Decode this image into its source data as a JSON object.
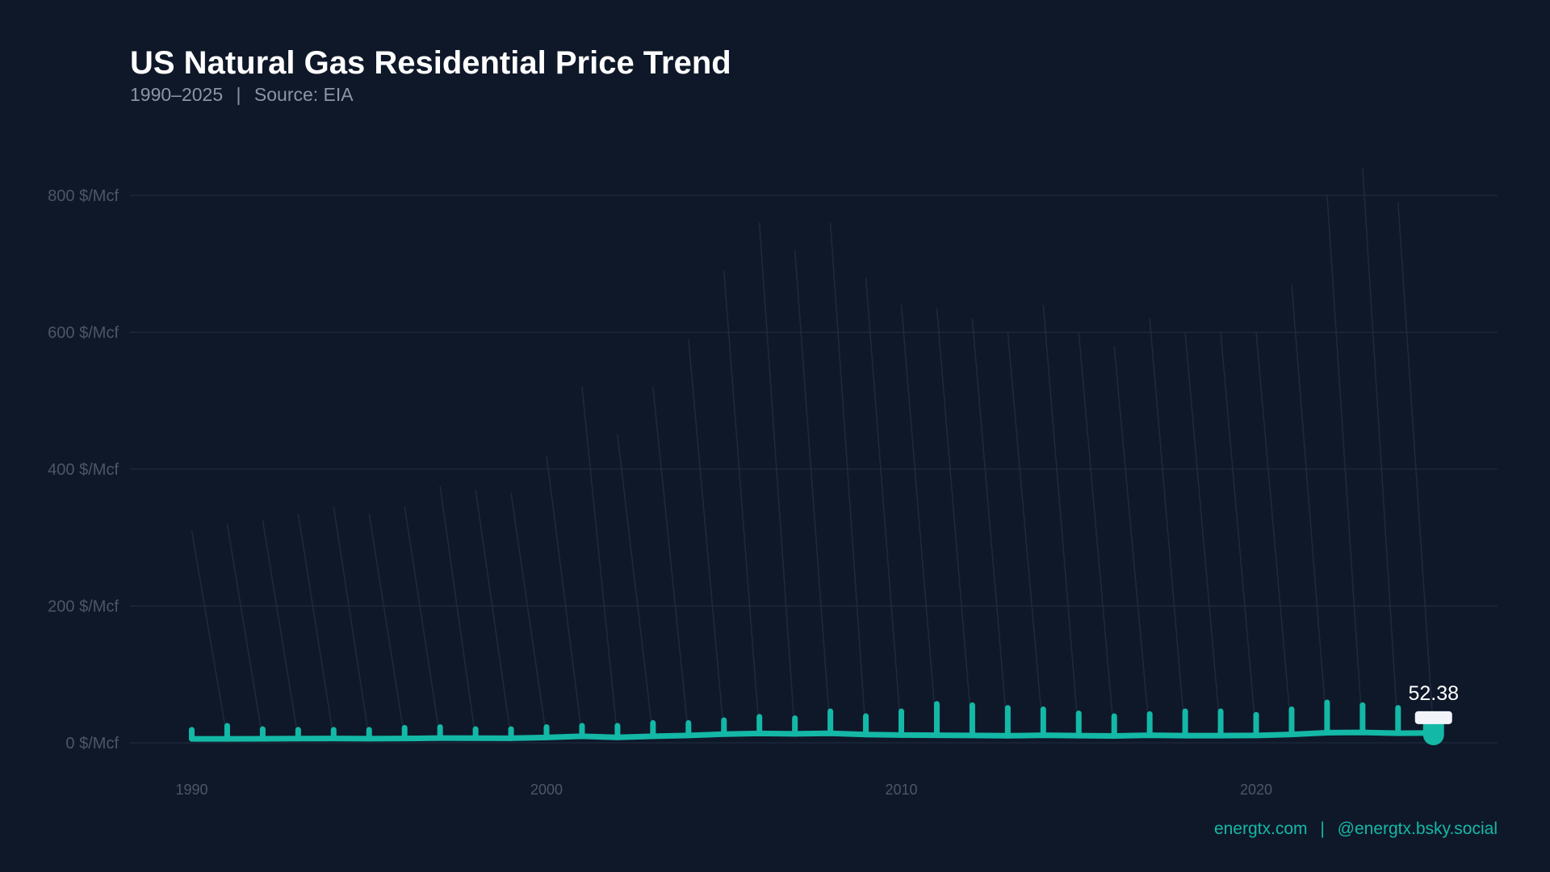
{
  "title": "US Natural Gas Residential Price Trend",
  "subtitle": {
    "range": "1990–2025",
    "separator": "|",
    "source": "Source: EIA"
  },
  "footer": {
    "site": "energtx.com",
    "separator": "|",
    "social": "@energtx.bsky.social"
  },
  "colors": {
    "background": "#0f1829",
    "line": "#14b8a6",
    "grid": "#1e2a3d",
    "tick_text": "#4b5668",
    "label": "#ffffff"
  },
  "chart_data": {
    "type": "line",
    "title": "US Natural Gas Residential Price Trend",
    "xlabel": "",
    "ylabel": "",
    "unit": "$/Mcf",
    "ylim": [
      0,
      800
    ],
    "xlim": [
      1988,
      2027
    ],
    "grid": true,
    "y_ticks": [
      "0 $/Mcf",
      "200 $/Mcf",
      "400 $/Mcf",
      "600 $/Mcf",
      "800 $/Mcf"
    ],
    "y_tick_values": [
      0,
      200,
      400,
      600,
      800
    ],
    "x_ticks": [
      "1990",
      "2000",
      "2010",
      "2020"
    ],
    "x_tick_values": [
      1990,
      2000,
      2010,
      2020
    ],
    "x": [
      1990,
      1991,
      1992,
      1993,
      1994,
      1995,
      1996,
      1997,
      1998,
      1999,
      2000,
      2001,
      2002,
      2003,
      2004,
      2005,
      2006,
      2007,
      2008,
      2009,
      2010,
      2011,
      2012,
      2013,
      2014,
      2015,
      2016,
      2017,
      2018,
      2019,
      2020,
      2021,
      2022,
      2023,
      2024,
      2025
    ],
    "series": [
      {
        "role": "line",
        "values": [
          5.8,
          5.8,
          5.9,
          6.2,
          6.4,
          6.1,
          6.3,
          7.0,
          6.8,
          6.7,
          7.8,
          9.6,
          7.9,
          9.6,
          10.7,
          12.7,
          13.7,
          13.1,
          13.9,
          12.1,
          11.4,
          11.0,
          10.7,
          10.3,
          11.0,
          10.4,
          10.1,
          11.0,
          10.5,
          10.5,
          10.8,
          12.2,
          14.8,
          15.2,
          14.0,
          14.5
        ]
      },
      {
        "role": "spikes",
        "values": [
          19,
          25,
          20,
          19,
          19,
          19,
          22,
          23,
          20,
          20,
          23,
          25,
          25,
          29,
          29,
          33,
          38,
          36,
          46,
          39,
          46,
          57,
          55,
          51,
          49,
          43,
          39,
          42,
          46,
          46,
          41,
          49,
          59,
          55,
          51,
          null
        ]
      },
      {
        "role": "faint-lines",
        "values": [
          310,
          320,
          325,
          335,
          345,
          335,
          345,
          375,
          370,
          365,
          420,
          520,
          450,
          520,
          590,
          690,
          760,
          720,
          760,
          680,
          640,
          635,
          620,
          600,
          640,
          600,
          580,
          620,
          600,
          600,
          600,
          670,
          800,
          840,
          790,
          null
        ]
      }
    ],
    "end_label": "52.38",
    "end_marker": {
      "x": 2025,
      "low": 0,
      "high": 25
    }
  }
}
